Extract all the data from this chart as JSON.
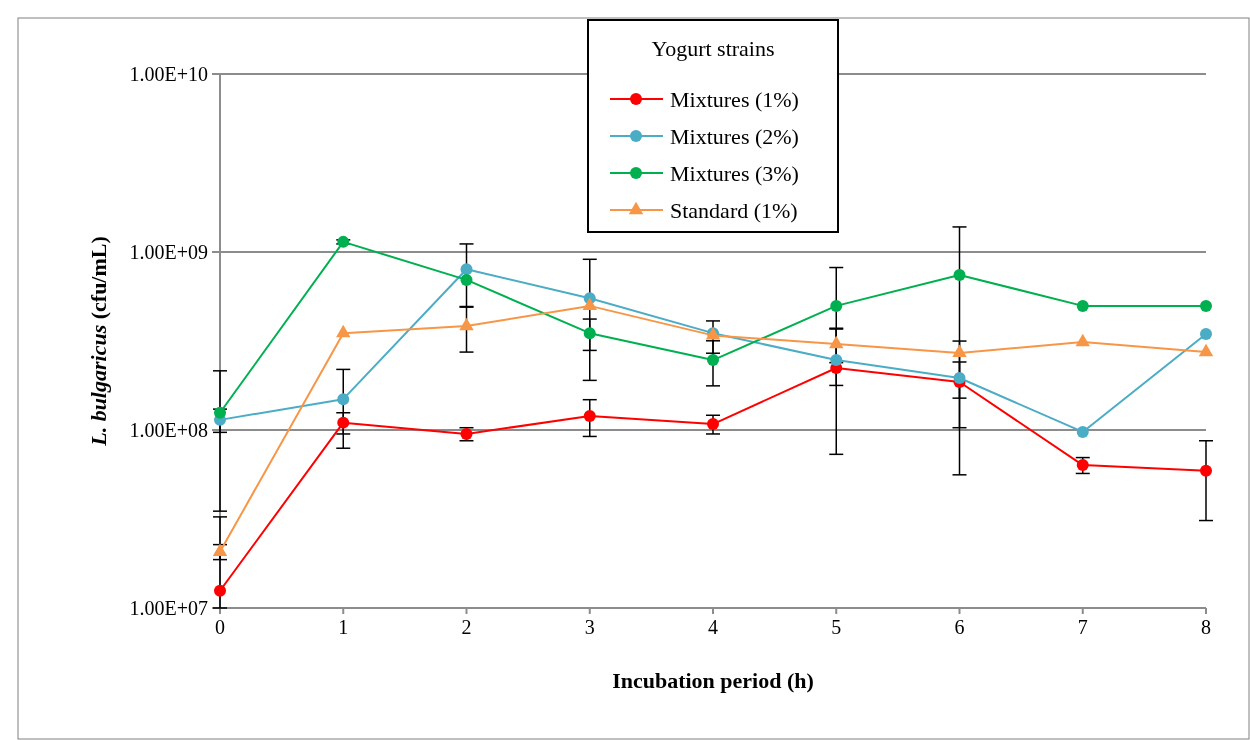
{
  "chart_data": {
    "type": "line",
    "xlabel": "Incubation period (h)",
    "ylabel": "L. bulgaricus (cfu/mL)",
    "legend_title": "Yogurt strains",
    "legend": "top",
    "log": "y",
    "grid": "y",
    "marker": "circle",
    "line_style": "solid",
    "x": [
      0,
      1,
      2,
      3,
      4,
      5,
      6,
      7,
      8
    ],
    "xlim": [
      0,
      8
    ],
    "xticks": [
      0,
      1,
      2,
      3,
      4,
      5,
      6,
      7,
      8
    ],
    "ylim": [
      10000000,
      10000000000
    ],
    "yticks": [
      {
        "value": 10000000,
        "label": "1.00E+07"
      },
      {
        "value": 100000000,
        "label": "1.00E+08"
      },
      {
        "value": 1000000000,
        "label": "1.00E+09"
      },
      {
        "value": 10000000000,
        "label": "1.00E+10"
      }
    ],
    "series": [
      {
        "name": "Mixtures (1%)",
        "color": "#ff0000",
        "values": [
          12500000,
          110000000,
          95000000,
          120000000,
          108000000,
          223000000,
          186000000,
          63500000,
          59000000
        ],
        "errors": [
          [
            10000000,
            32500000
          ],
          15000000,
          8000000,
          28000000,
          13000000,
          150000000,
          130000000,
          6500000,
          28000000
        ]
      },
      {
        "name": "Mixtures (2%)",
        "color": "#4bacc6",
        "values": [
          114000000,
          149000000,
          800000000,
          550000000,
          350000000,
          247000000,
          196000000,
          97500000,
          346000000
        ],
        "errors": [
          17000000,
          70000000,
          310000000,
          360000000,
          null,
          null,
          45000000,
          null,
          null
        ]
      },
      {
        "name": "Mixtures (3%)",
        "color": "#00b050",
        "values": [
          125000000,
          1140000000,
          697000000,
          350000000,
          247000000,
          498000000,
          743000000,
          498000000,
          498000000
        ],
        "errors": [
          90000000,
          30000000,
          null,
          70000000,
          70000000,
          320000000,
          640000000,
          null,
          null
        ]
      },
      {
        "name": "Standard (1%)",
        "color": "#f79646",
        "marker": "triangle",
        "values": [
          20700000,
          350000000,
          384000000,
          498000000,
          340000000,
          304000000,
          271000000,
          312000000,
          274000000
        ],
        "errors": [
          2000000,
          null,
          110000000,
          null,
          70000000,
          65000000,
          null,
          null,
          null
        ]
      }
    ]
  }
}
